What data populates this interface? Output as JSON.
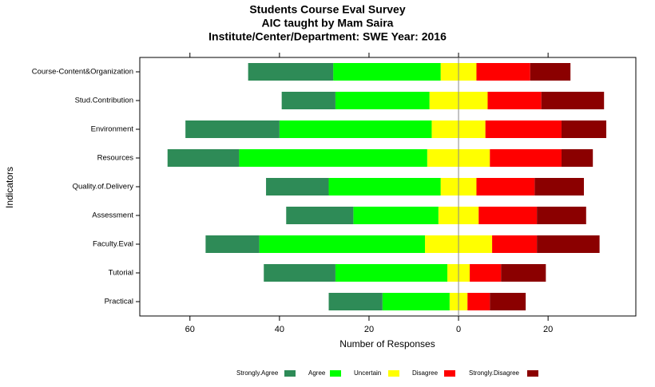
{
  "chart_data": {
    "type": "diverging-bar",
    "title": "Students Course Eval Survey",
    "subtitle": [
      "AIC taught by Mam Saira",
      "Institute/Center/Department: SWE Year: 2016"
    ],
    "x_label": "Number of Responses",
    "y_label": "Indicators",
    "categories": [
      "Course-Content&Organization",
      "Stud.Contribution",
      "Environment",
      "Resources",
      "Quality.of.Delivery",
      "Assessment",
      "Faculty.Eval",
      "Tutorial",
      "Practical"
    ],
    "series": [
      {
        "name": "Strongly.Agree",
        "color": "#2e8b57",
        "values": [
          19,
          12,
          21,
          16,
          14,
          15,
          12,
          16,
          12
        ]
      },
      {
        "name": "Agree",
        "color": "#00ff00",
        "values": [
          24,
          21,
          34,
          42,
          25,
          19,
          37,
          25,
          15
        ]
      },
      {
        "name": "Uncertain",
        "color": "#ffff00",
        "values": [
          8,
          13,
          12,
          14,
          8,
          9,
          15,
          5,
          4
        ]
      },
      {
        "name": "Disagree",
        "color": "#ff0000",
        "values": [
          12,
          12,
          17,
          16,
          13,
          13,
          10,
          7,
          5
        ]
      },
      {
        "name": "Strongly.Disagree",
        "color": "#8b0000",
        "values": [
          9,
          14,
          10,
          7,
          11,
          11,
          14,
          10,
          8
        ]
      }
    ],
    "xlim": [
      -71.2,
      39.6
    ],
    "xticks": [
      {
        "value": -60,
        "label": "60"
      },
      {
        "value": -40,
        "label": "40"
      },
      {
        "value": -20,
        "label": "20"
      },
      0,
      20
    ],
    "legend": "bottom"
  }
}
